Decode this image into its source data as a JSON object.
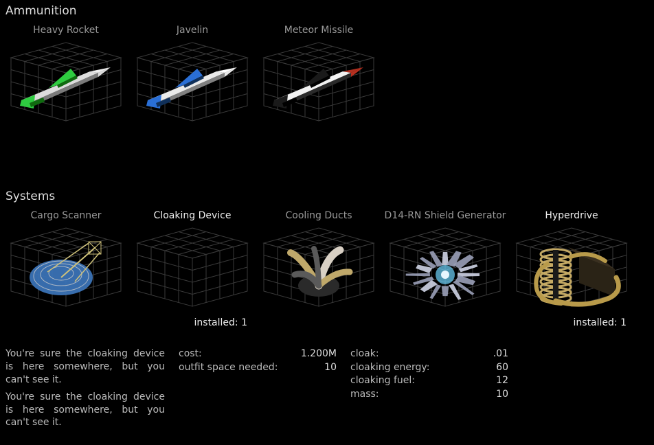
{
  "sections": {
    "ammunition": {
      "title": "Ammunition"
    },
    "systems": {
      "title": "Systems"
    }
  },
  "ammunition_items": [
    {
      "name": "Heavy Rocket",
      "label_color": "#999999",
      "body_color": "#dcdcdc",
      "body_shadow": "#7a7a7a",
      "fin_color": "#2ecc40",
      "fin_shadow": "#106a10",
      "nose_color": "#eeeeee"
    },
    {
      "name": "Javelin",
      "label_color": "#999999",
      "body_color": "#eaeaea",
      "body_shadow": "#808080",
      "fin_color": "#2a6fd6",
      "fin_shadow": "#10305a",
      "nose_color": "#ffffff"
    },
    {
      "name": "Meteor Missile",
      "label_color": "#999999",
      "body_color": "#f2f2f2",
      "body_shadow": "#2a2a2a",
      "fin_color": "#1a1a1a",
      "fin_shadow": "#000000",
      "nose_color": "#b03020",
      "accent_color": "#b83020"
    }
  ],
  "systems_items": [
    {
      "name": "Cargo Scanner",
      "label_color": "#999999",
      "icon_type": "scanner",
      "colors": {
        "dish": "#3a72b5",
        "struts": "#cfc27a",
        "highlight": "#aeb8c4"
      }
    },
    {
      "name": "Cloaking Device",
      "label_color": "#eeeeee",
      "icon_type": "empty",
      "installed": "installed: 1"
    },
    {
      "name": "Cooling Ducts",
      "label_color": "#999999",
      "icon_type": "ducts",
      "colors": {
        "pipe1": "#bfa86a",
        "pipe2": "#d8d0c4",
        "pipe3": "#5a5a5a",
        "core": "#2a2a2a"
      }
    },
    {
      "name": "D14-RN Shield Generator",
      "label_color": "#999999",
      "icon_type": "shield",
      "colors": {
        "outer": "#9aa0b8",
        "mid": "#cfd4e6",
        "glow": "#6fd6ff",
        "core": "#e8f6ff"
      }
    },
    {
      "name": "Hyperdrive",
      "label_color": "#eeeeee",
      "icon_type": "engine",
      "colors": {
        "block": "#2a2316",
        "coil": "#c4a964",
        "pipe": "#b89a4a"
      },
      "installed": "installed: 1"
    }
  ],
  "description": [
    "You're sure the cloaking device is here somewhere, but you can't see it.",
    "You're sure the cloaking device is here somewhere, but you can't see it."
  ],
  "stats_left": [
    {
      "label": "cost:",
      "value": "1.200M"
    },
    {
      "label": "outfit space needed:",
      "value": "10"
    }
  ],
  "stats_right": [
    {
      "label": "cloak:",
      "value": ".01"
    },
    {
      "label": "cloaking energy:",
      "value": "60"
    },
    {
      "label": "cloaking fuel:",
      "value": "12"
    },
    {
      "label": "mass:",
      "value": "10"
    }
  ],
  "style": {
    "grid_stroke": "#3a3a3a",
    "background": "#000000"
  }
}
